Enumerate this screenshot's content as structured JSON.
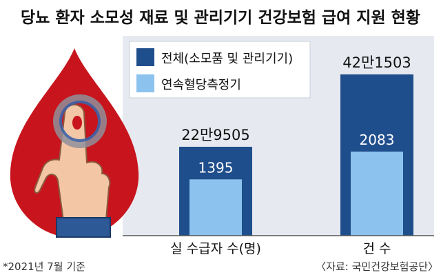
{
  "chart_data": {
    "type": "bar",
    "title": "당뇨 환자 소모성 재료 및 관리기기 건강보험 급여 지원 현황",
    "categories": [
      "실 수급자 수(명)",
      "건 수"
    ],
    "series": [
      {
        "name": "전체(소모품 및 관리기기)",
        "values": [
          229505,
          421503
        ],
        "labels": [
          "22만9505",
          "42만1503"
        ],
        "color": "#1f4e8c"
      },
      {
        "name": "연속혈당측정기",
        "values": [
          1395,
          2083
        ],
        "labels": [
          "1395",
          "2083"
        ],
        "color": "#8cc3ee"
      }
    ],
    "legend_placement": "top-left",
    "footnote": "*2021년 7월 기준",
    "source": "〈자료: 국민건강보험공단〉"
  },
  "colors": {
    "dark_bar": "#1f4e8c",
    "light_bar": "#8cc3ee",
    "panel": "#e6eaf0",
    "drop": "#c8151d"
  },
  "icons": [
    "blood-drop-icon",
    "finger-icon",
    "glucose-ring-icon"
  ]
}
